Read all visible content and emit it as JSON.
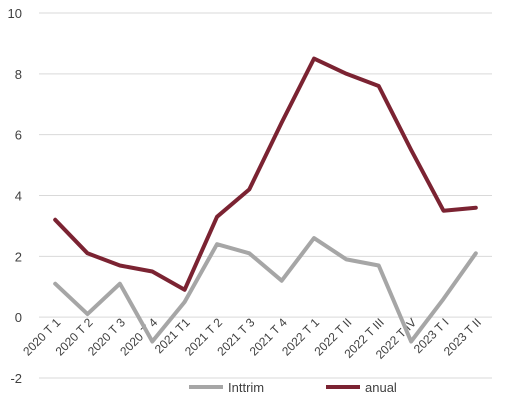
{
  "chart_data": {
    "type": "line",
    "categories": [
      "2020 T 1",
      "2020 T 2",
      "2020 T 3",
      "2020 T 4",
      "2021 T1",
      "2021 T 2",
      "2021 T 3",
      "2021 T 4",
      "2022 T 1",
      "2022 T II",
      "2022 T III",
      "2022 T IV",
      "2023 T I",
      "2023 T II"
    ],
    "ylim": [
      -2,
      10
    ],
    "yticks": [
      -2,
      0,
      2,
      4,
      6,
      8,
      10
    ],
    "grid": true,
    "legend_position": "bottom",
    "series": [
      {
        "name": "Inttrim",
        "color": "#a6a6a6",
        "values": [
          1.1,
          0.1,
          1.1,
          -0.8,
          0.5,
          2.4,
          2.1,
          1.2,
          2.6,
          1.9,
          1.7,
          -0.8,
          0.6,
          2.1
        ]
      },
      {
        "name": "anual",
        "color": "#7b2332",
        "values": [
          3.2,
          2.1,
          1.7,
          1.5,
          0.9,
          3.3,
          4.2,
          6.4,
          8.5,
          8.0,
          7.6,
          5.5,
          3.5,
          3.6
        ]
      }
    ]
  }
}
